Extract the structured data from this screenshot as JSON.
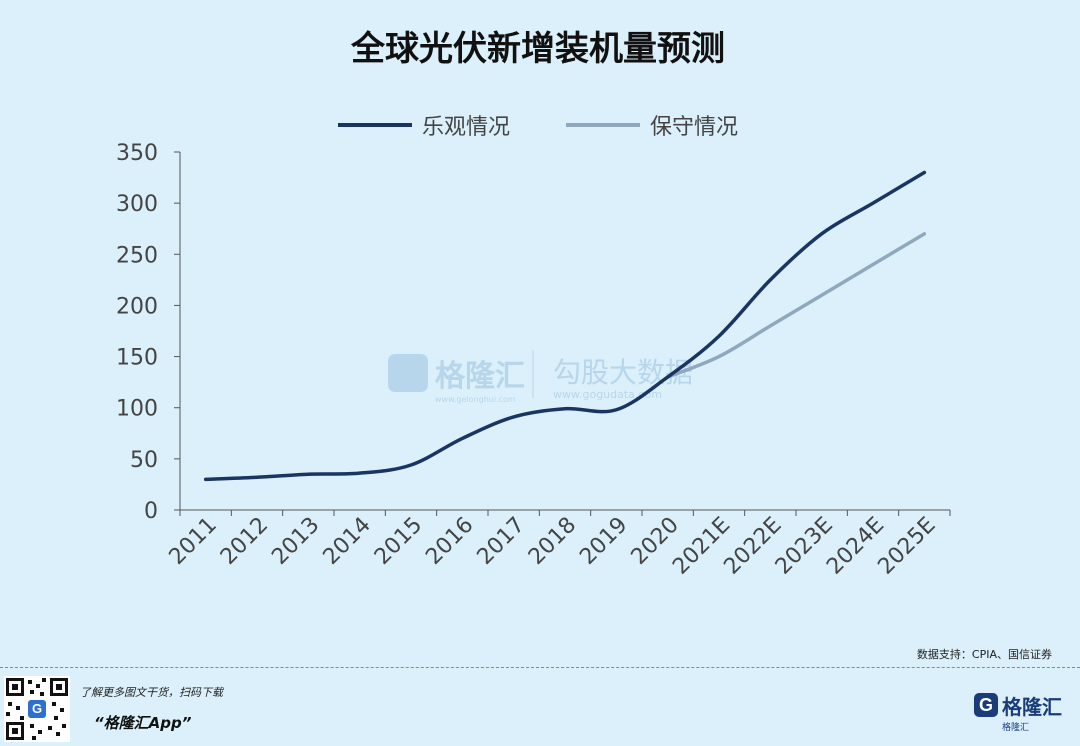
{
  "chart_data": {
    "type": "line",
    "title": "全球光伏新增装机量预测",
    "categories": [
      "2011",
      "2012",
      "2013",
      "2014",
      "2015",
      "2016",
      "2017",
      "2018",
      "2019",
      "2020",
      "2021E",
      "2022E",
      "2023E",
      "2024E",
      "2025E"
    ],
    "series": [
      {
        "name": "乐观情况",
        "color": "#1a3562",
        "values": [
          30,
          32,
          35,
          36,
          44,
          70,
          91,
          99,
          98,
          130,
          170,
          225,
          270,
          300,
          330
        ]
      },
      {
        "name": "保守情况",
        "color": "#8fa8bd",
        "values": [
          null,
          null,
          null,
          null,
          null,
          null,
          null,
          null,
          null,
          130,
          150,
          180,
          210,
          240,
          270
        ]
      }
    ],
    "y_ticks": [
      "0",
      "50",
      "100",
      "150",
      "200",
      "250",
      "300",
      "350"
    ],
    "ylim": [
      0,
      350
    ],
    "legend_position": "top",
    "grid": false,
    "source": "数据支持：CPIA、国信证券"
  },
  "watermark": {
    "brand": "格隆汇",
    "brand_url": "www.gelonghui.com",
    "partner": "勾股大数据",
    "partner_url": "www.gogudata.com"
  },
  "footer": {
    "tagline": "了解更多图文干货，扫码下载",
    "app_name": "“格隆汇App”",
    "qr_icon_letter": "G",
    "logo_letter": "G",
    "logo_text": "格隆汇",
    "logo_sub": "格隆汇"
  },
  "colors": {
    "background": "#dbf0fb",
    "axis": "#555555",
    "tick_text": "#444444"
  }
}
